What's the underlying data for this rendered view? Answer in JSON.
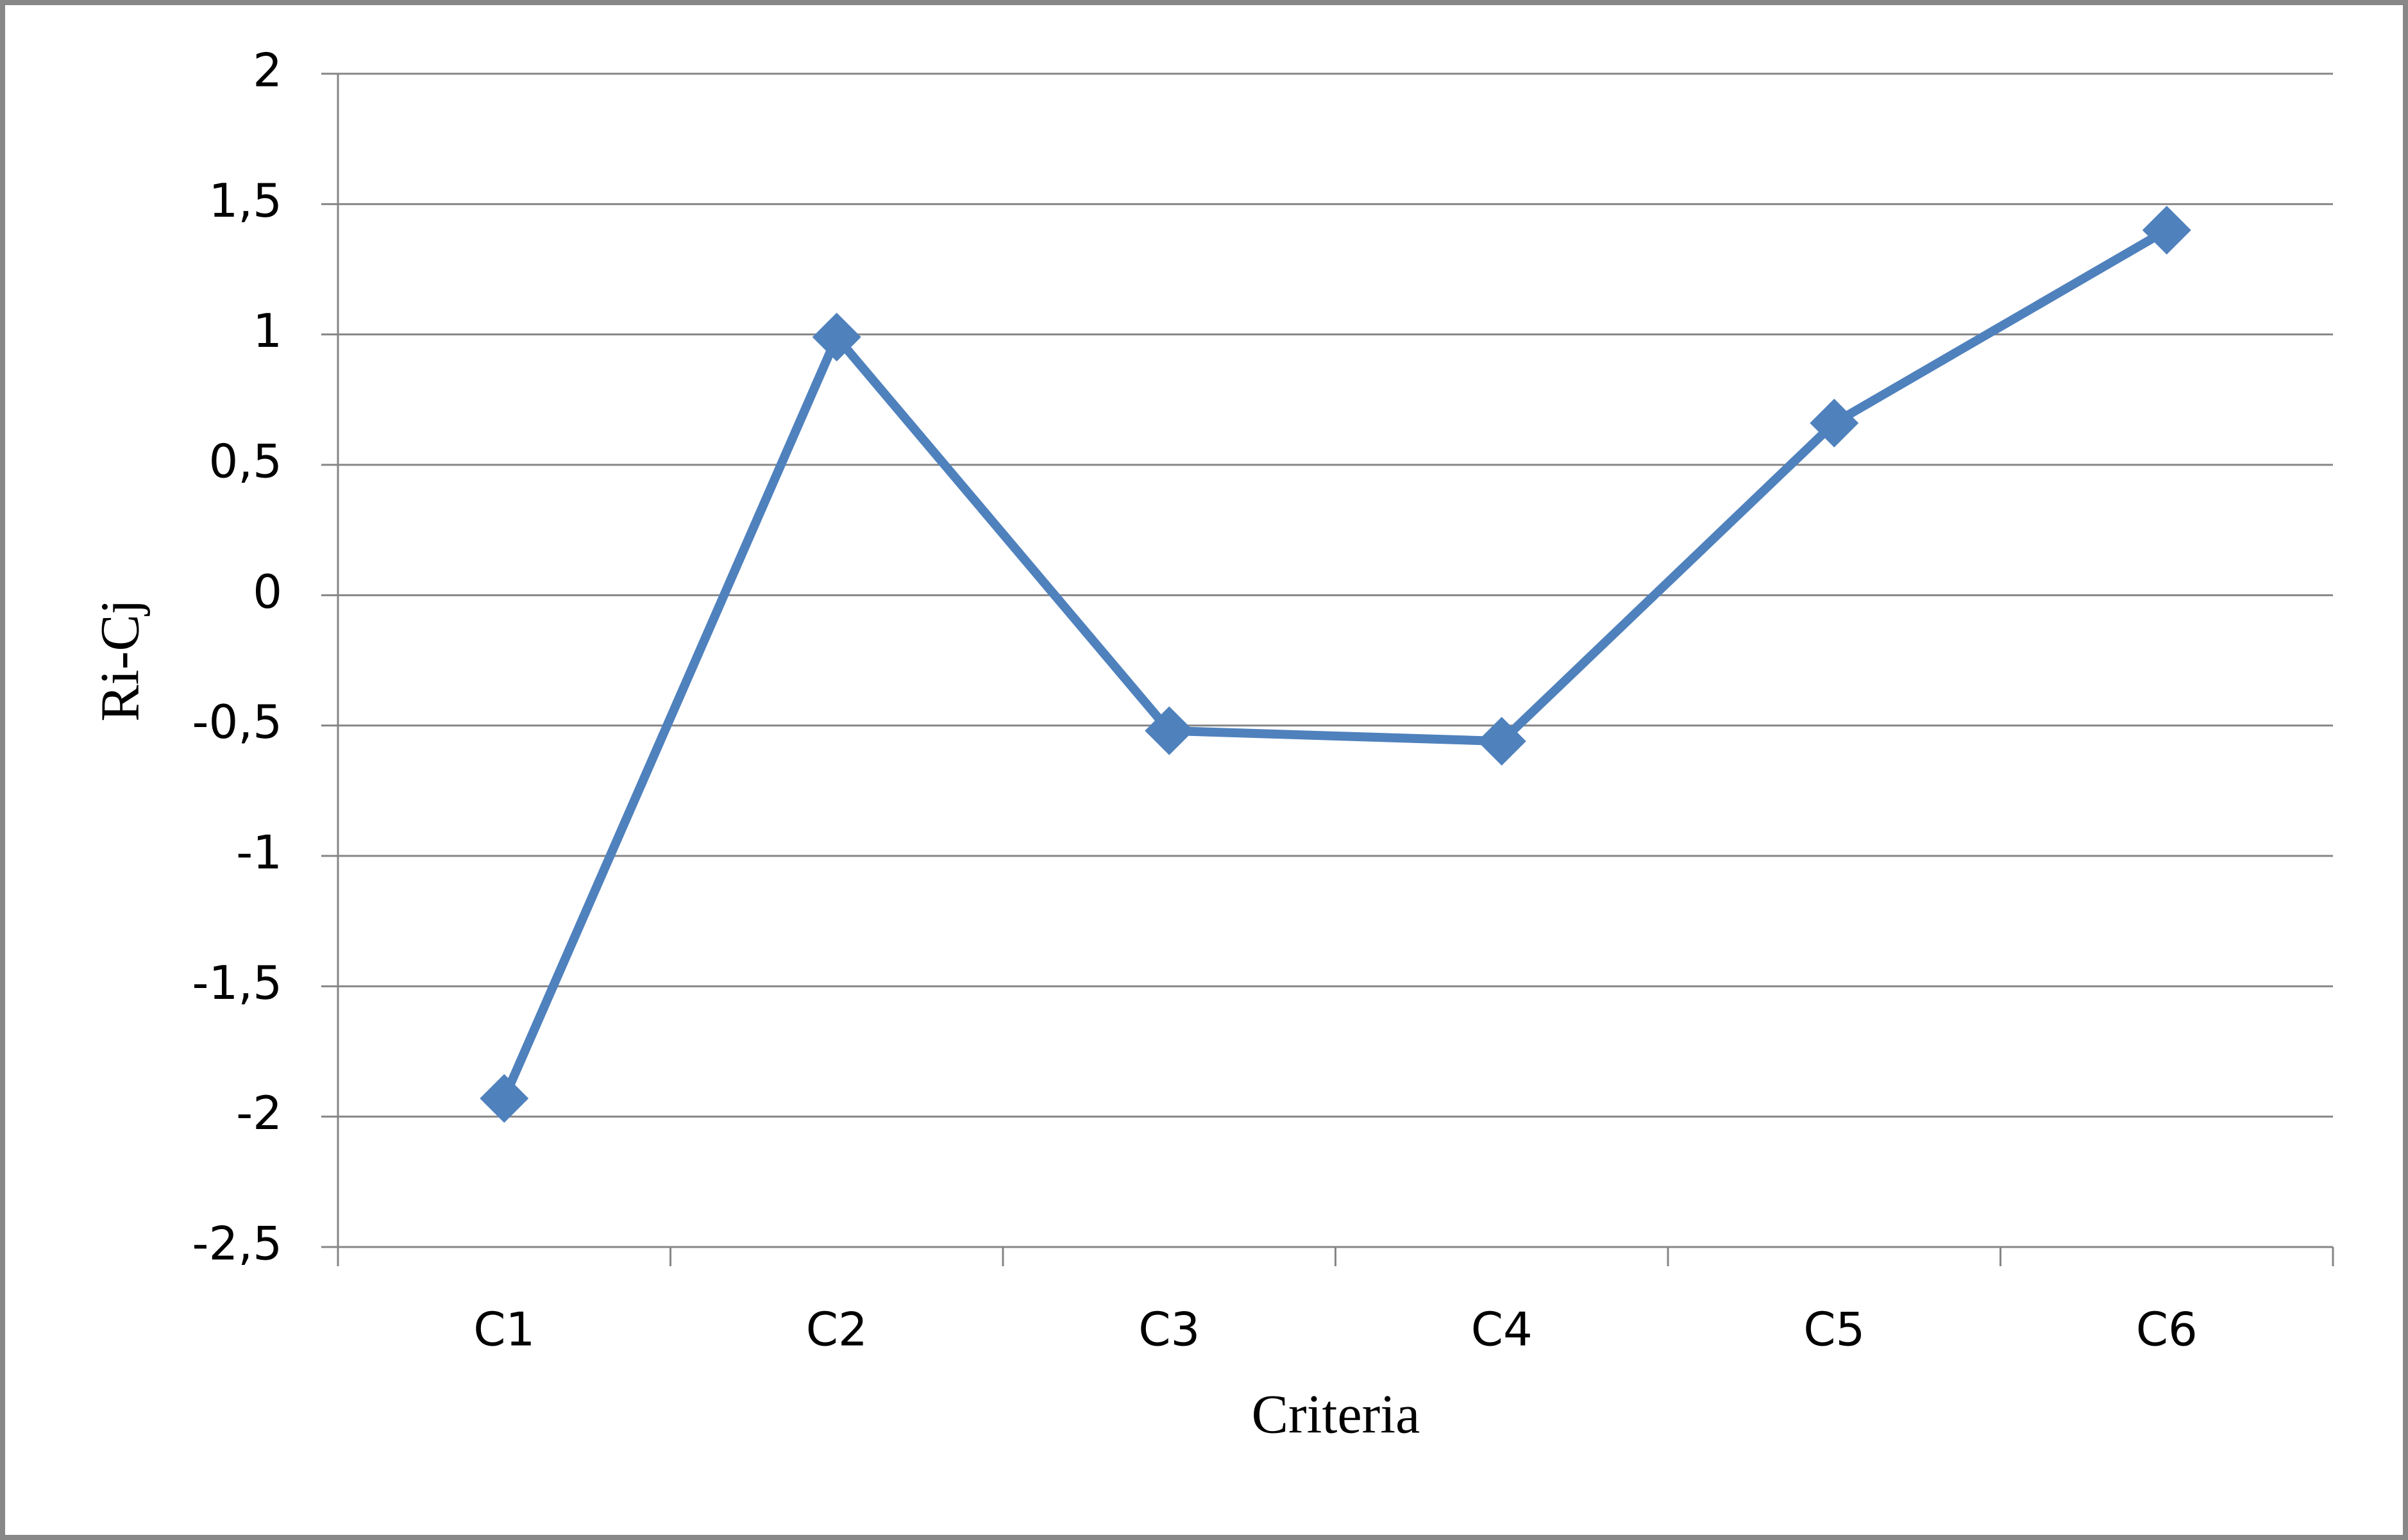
{
  "chart_data": {
    "type": "line",
    "x_label": "Criteria",
    "y_label": "Ri-Cj",
    "categories": [
      "C1",
      "C2",
      "C3",
      "C4",
      "C5",
      "C6"
    ],
    "series": [
      {
        "color": "#4f81bd",
        "values": [
          -1.93,
          0.99,
          -0.52,
          -0.56,
          0.66,
          1.4
        ]
      }
    ],
    "ylim": [
      -2.5,
      2
    ],
    "yticks": [
      {
        "value": -2.5,
        "label": "-2,5"
      },
      -2,
      {
        "value": -1.5,
        "label": "-1,5"
      },
      -1,
      {
        "value": -0.5,
        "label": "-0,5"
      },
      0,
      {
        "value": 0.5,
        "label": "0,5"
      },
      1,
      {
        "value": 1.5,
        "label": "1,5"
      },
      2
    ],
    "grid": true
  }
}
